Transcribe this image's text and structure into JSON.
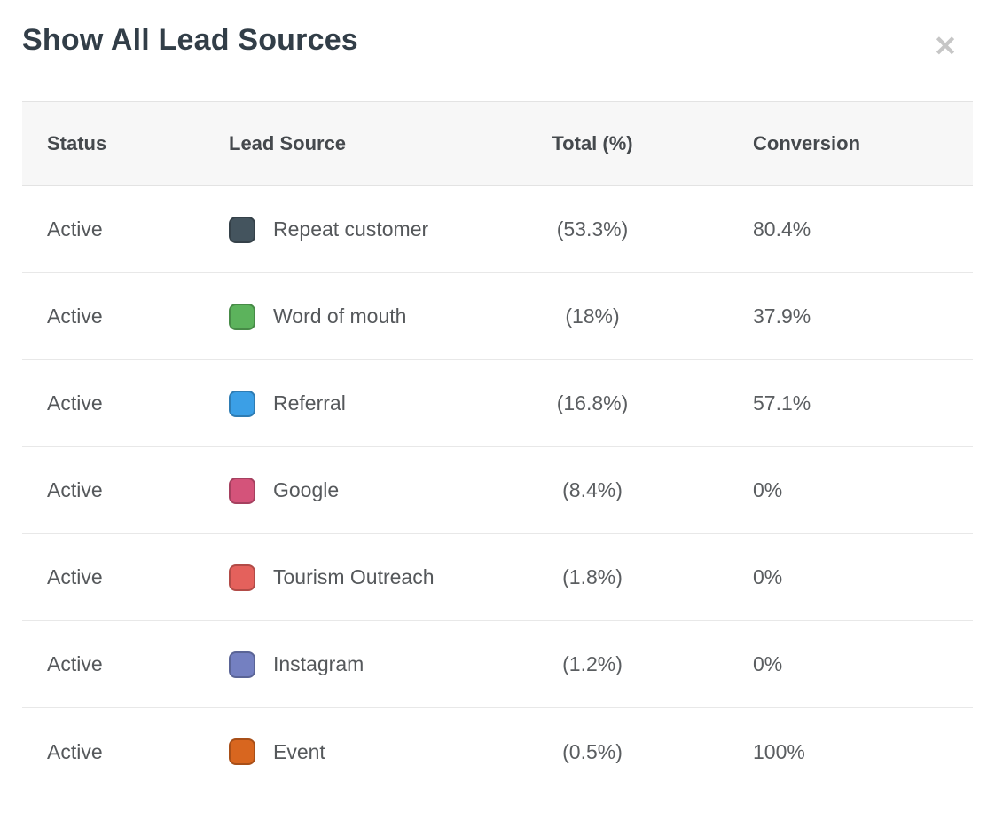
{
  "modal": {
    "title": "Show All Lead Sources",
    "close_glyph": "✕"
  },
  "table": {
    "columns": [
      "Status",
      "Lead Source",
      "Total (%)",
      "Conversion"
    ],
    "rows": [
      {
        "status": "Active",
        "source": "Repeat customer",
        "color": "#44545e",
        "total": "(53.3%)",
        "conversion": "80.4%"
      },
      {
        "status": "Active",
        "source": "Word of mouth",
        "color": "#5cb35c",
        "total": "(18%)",
        "conversion": "37.9%"
      },
      {
        "status": "Active",
        "source": "Referral",
        "color": "#3b9fe6",
        "total": "(16.8%)",
        "conversion": "57.1%"
      },
      {
        "status": "Active",
        "source": "Google",
        "color": "#d4537a",
        "total": "(8.4%)",
        "conversion": "0%"
      },
      {
        "status": "Active",
        "source": "Tourism Outreach",
        "color": "#e4615c",
        "total": "(1.8%)",
        "conversion": "0%"
      },
      {
        "status": "Active",
        "source": "Instagram",
        "color": "#7480c1",
        "total": "(1.2%)",
        "conversion": "0%"
      },
      {
        "status": "Active",
        "source": "Event",
        "color": "#d8661f",
        "total": "(0.5%)",
        "conversion": "100%"
      }
    ]
  }
}
